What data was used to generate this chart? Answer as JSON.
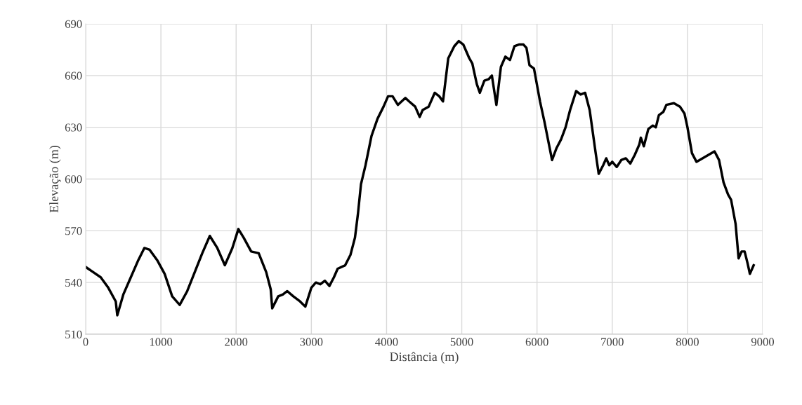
{
  "chart_data": {
    "type": "line",
    "xlabel": "Distância (m)",
    "ylabel": "Elevação (m)",
    "xlim": [
      0,
      9000
    ],
    "xticks": [
      0,
      1000,
      2000,
      3000,
      4000,
      5000,
      6000,
      7000,
      8000,
      9000
    ],
    "ylim": [
      510,
      690
    ],
    "yticks": [
      510,
      540,
      570,
      600,
      630,
      660,
      690
    ],
    "grid": true,
    "marker": "none",
    "line_style": "solid",
    "series": [
      {
        "color": "#000000",
        "x": [
          0,
          100,
          200,
          300,
          400,
          420,
          500,
          600,
          700,
          780,
          850,
          950,
          1050,
          1150,
          1250,
          1350,
          1450,
          1550,
          1650,
          1750,
          1850,
          1950,
          2030,
          2100,
          2200,
          2300,
          2400,
          2460,
          2480,
          2560,
          2620,
          2680,
          2760,
          2850,
          2920,
          3000,
          3060,
          3120,
          3180,
          3240,
          3300,
          3350,
          3450,
          3520,
          3580,
          3620,
          3660,
          3720,
          3800,
          3880,
          3960,
          4020,
          4080,
          4150,
          4250,
          4300,
          4380,
          4440,
          4480,
          4560,
          4640,
          4700,
          4750,
          4820,
          4900,
          4960,
          5020,
          5100,
          5140,
          5200,
          5240,
          5300,
          5360,
          5400,
          5460,
          5520,
          5580,
          5640,
          5700,
          5760,
          5820,
          5860,
          5900,
          5960,
          6040,
          6100,
          6200,
          6260,
          6320,
          6380,
          6440,
          6520,
          6580,
          6640,
          6700,
          6780,
          6820,
          6880,
          6920,
          6960,
          7000,
          7060,
          7120,
          7180,
          7240,
          7300,
          7360,
          7380,
          7420,
          7480,
          7540,
          7580,
          7620,
          7680,
          7720,
          7820,
          7900,
          7960,
          8000,
          8060,
          8120,
          8200,
          8280,
          8360,
          8420,
          8480,
          8540,
          8580,
          8640,
          8680,
          8720,
          8760,
          8800,
          8830,
          8880
        ],
        "values": [
          549,
          546,
          543,
          537,
          529,
          521,
          533,
          543,
          553,
          560,
          559,
          553,
          545,
          532,
          527,
          535,
          546,
          557,
          567,
          560,
          550,
          560,
          571,
          566,
          558,
          557,
          546,
          536,
          525,
          532,
          533,
          535,
          532,
          529,
          526,
          537,
          540,
          539,
          541,
          538,
          543,
          548,
          550,
          556,
          566,
          580,
          597,
          608,
          625,
          635,
          642,
          648,
          648,
          643,
          647,
          645,
          642,
          636,
          640,
          642,
          650,
          648,
          645,
          670,
          677,
          680,
          678,
          670,
          667,
          655,
          650,
          657,
          658,
          660,
          643,
          665,
          671,
          669,
          677,
          678,
          678,
          676,
          666,
          664,
          645,
          633,
          611,
          618,
          623,
          630,
          640,
          651,
          649,
          650,
          640,
          615,
          603,
          608,
          612,
          608,
          610,
          607,
          611,
          612,
          609,
          614,
          620,
          624,
          619,
          629,
          631,
          630,
          637,
          639,
          643,
          644,
          642,
          638,
          630,
          615,
          610,
          612,
          614,
          616,
          611,
          598,
          591,
          588,
          574,
          554,
          558,
          558,
          551,
          545,
          550
        ]
      }
    ]
  }
}
